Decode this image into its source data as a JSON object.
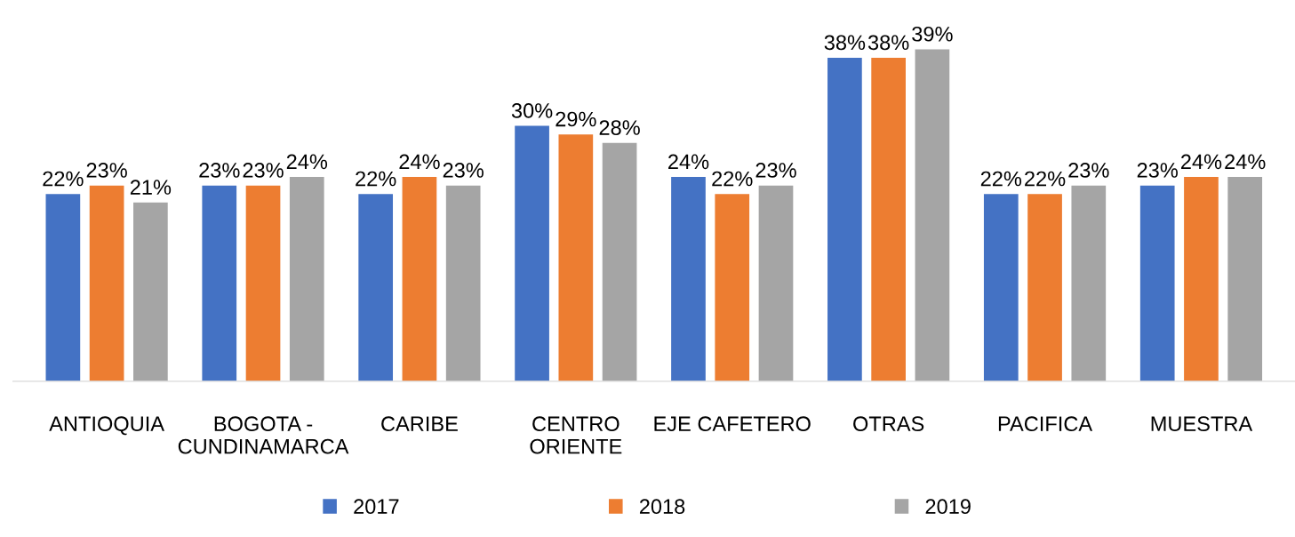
{
  "chart_data": {
    "type": "bar",
    "categories": [
      "ANTIOQUIA",
      "BOGOTA -\nCUNDINAMARCA",
      "CARIBE",
      "CENTRO\nORIENTE",
      "EJE CAFETERO",
      "OTRAS",
      "PACIFICA",
      "MUESTRA"
    ],
    "series": [
      {
        "name": "2017",
        "color": "#4472c4",
        "values": [
          22,
          23,
          22,
          30,
          24,
          38,
          22,
          23
        ],
        "value_labels": [
          "22%",
          "23%",
          "22%",
          "30%",
          "24%",
          "38%",
          "22%",
          "23%"
        ]
      },
      {
        "name": "2018",
        "color": "#ed7d31",
        "values": [
          23,
          23,
          24,
          29,
          22,
          38,
          22,
          24
        ],
        "value_labels": [
          "23%",
          "23%",
          "24%",
          "29%",
          "22%",
          "38%",
          "22%",
          "24%"
        ]
      },
      {
        "name": "2019",
        "color": "#a5a5a5",
        "values": [
          21,
          24,
          23,
          28,
          23,
          39,
          23,
          24
        ],
        "value_labels": [
          "21%",
          "24%",
          "23%",
          "28%",
          "23%",
          "39%",
          "23%",
          "24%"
        ]
      }
    ],
    "legend": "bottom",
    "grid": false
  }
}
